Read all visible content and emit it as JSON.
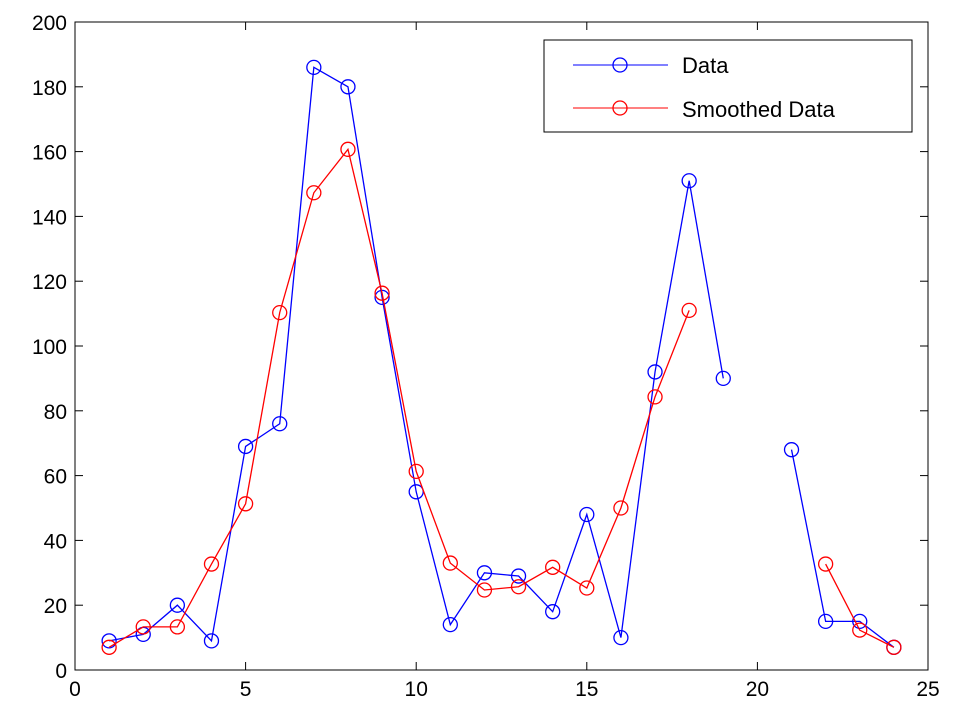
{
  "chart_data": {
    "type": "line",
    "title": "",
    "xlabel": "",
    "ylabel": "",
    "xlim": [
      0,
      25
    ],
    "ylim": [
      0,
      200
    ],
    "xticks": [
      0,
      5,
      10,
      15,
      20,
      25
    ],
    "yticks": [
      0,
      20,
      40,
      60,
      80,
      100,
      120,
      140,
      160,
      180,
      200
    ],
    "grid": false,
    "legend_position": "top-right",
    "series": [
      {
        "name": "Data",
        "color": "#0000ff",
        "marker": "circle",
        "x": [
          1,
          2,
          3,
          4,
          5,
          6,
          7,
          8,
          9,
          10,
          11,
          12,
          13,
          14,
          15,
          16,
          17,
          18,
          19,
          20,
          21,
          22,
          23,
          24
        ],
        "y": [
          9,
          11,
          20,
          9,
          69,
          76,
          186,
          180,
          115,
          55,
          14,
          30,
          29,
          18,
          48,
          10,
          92,
          151,
          90,
          null,
          68,
          15,
          15,
          7
        ]
      },
      {
        "name": "Smoothed Data",
        "color": "#ff0000",
        "marker": "circle",
        "x": [
          1,
          2,
          3,
          4,
          5,
          6,
          7,
          8,
          9,
          10,
          11,
          12,
          13,
          14,
          15,
          16,
          17,
          18,
          19,
          20,
          21,
          22,
          23,
          24
        ],
        "y": [
          7,
          13.3,
          13.3,
          32.7,
          51.3,
          110.3,
          147.3,
          160.7,
          116.3,
          61.3,
          33,
          24.7,
          25.7,
          31.7,
          25.3,
          50,
          84.3,
          111,
          null,
          null,
          null,
          32.7,
          12.3,
          7
        ]
      }
    ]
  }
}
